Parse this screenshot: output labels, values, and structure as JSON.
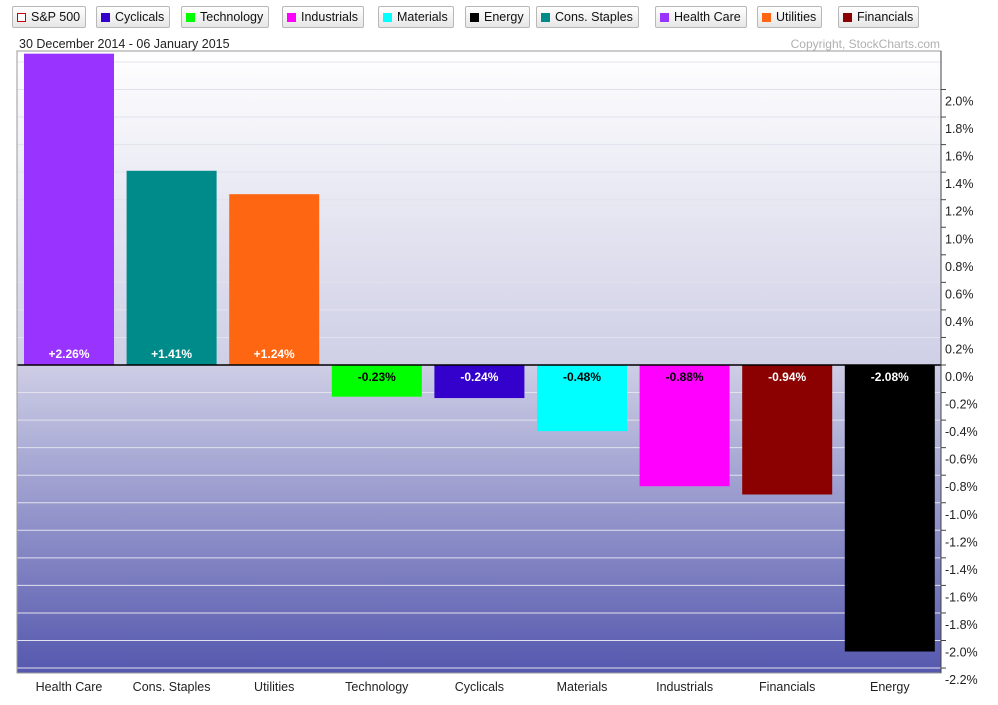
{
  "legend": [
    {
      "label": "S&P 500",
      "color": "#ffffff",
      "outline": "#cc0000"
    },
    {
      "label": "Cyclicals",
      "color": "#3300cc"
    },
    {
      "label": "Technology",
      "color": "#00ff00"
    },
    {
      "label": "Industrials",
      "color": "#ff00ff"
    },
    {
      "label": "Materials",
      "color": "#00ffff"
    },
    {
      "label": "Energy",
      "color": "#000000"
    },
    {
      "label": "Cons. Staples",
      "color": "#008b8b"
    },
    {
      "label": "Health Care",
      "color": "#9933ff"
    },
    {
      "label": "Utilities",
      "color": "#ff6611"
    },
    {
      "label": "Financials",
      "color": "#8b0000"
    }
  ],
  "header": {
    "date_range": "30 December 2014 - 06 January 2015",
    "copyright": "Copyright, StockCharts.com"
  },
  "chart_data": {
    "type": "bar",
    "categories": [
      "Health Care",
      "Cons. Staples",
      "Utilities",
      "Technology",
      "Cyclicals",
      "Materials",
      "Industrials",
      "Financials",
      "Energy"
    ],
    "values": [
      2.26,
      1.41,
      1.24,
      -0.23,
      -0.24,
      -0.48,
      -0.88,
      -0.94,
      -2.08
    ],
    "value_labels": [
      "+2.26%",
      "+1.41%",
      "+1.24%",
      "-0.23%",
      "-0.24%",
      "-0.48%",
      "-0.88%",
      "-0.94%",
      "-2.08%"
    ],
    "colors": [
      "#9933ff",
      "#008b8b",
      "#ff6611",
      "#00ff00",
      "#3300cc",
      "#00ffff",
      "#ff00ff",
      "#8b0000",
      "#000000"
    ],
    "label_colors": [
      "#ffffff",
      "#ffffff",
      "#ffffff",
      "#000000",
      "#ffffff",
      "#000000",
      "#000000",
      "#ffffff",
      "#ffffff"
    ],
    "yticks": [
      2.0,
      1.8,
      1.6,
      1.4,
      1.2,
      1.0,
      0.8,
      0.6,
      0.4,
      0.2,
      0.0,
      -0.2,
      -0.4,
      -0.6,
      -0.8,
      -1.0,
      -1.2,
      -1.4,
      -1.6,
      -1.8,
      -2.0,
      -2.2
    ],
    "ytick_labels": [
      "2.0%",
      "1.8%",
      "1.6%",
      "1.4%",
      "1.2%",
      "1.0%",
      "0.8%",
      "0.6%",
      "0.4%",
      "0.2%",
      "0.0%",
      "-0.2%",
      "-0.4%",
      "-0.6%",
      "-0.8%",
      "-1.0%",
      "-1.2%",
      "-1.4%",
      "-1.6%",
      "-1.8%",
      "-2.0%",
      "-2.2%"
    ],
    "ylim": [
      -2.3,
      2.3
    ],
    "grid": true,
    "legend_position": "top"
  }
}
